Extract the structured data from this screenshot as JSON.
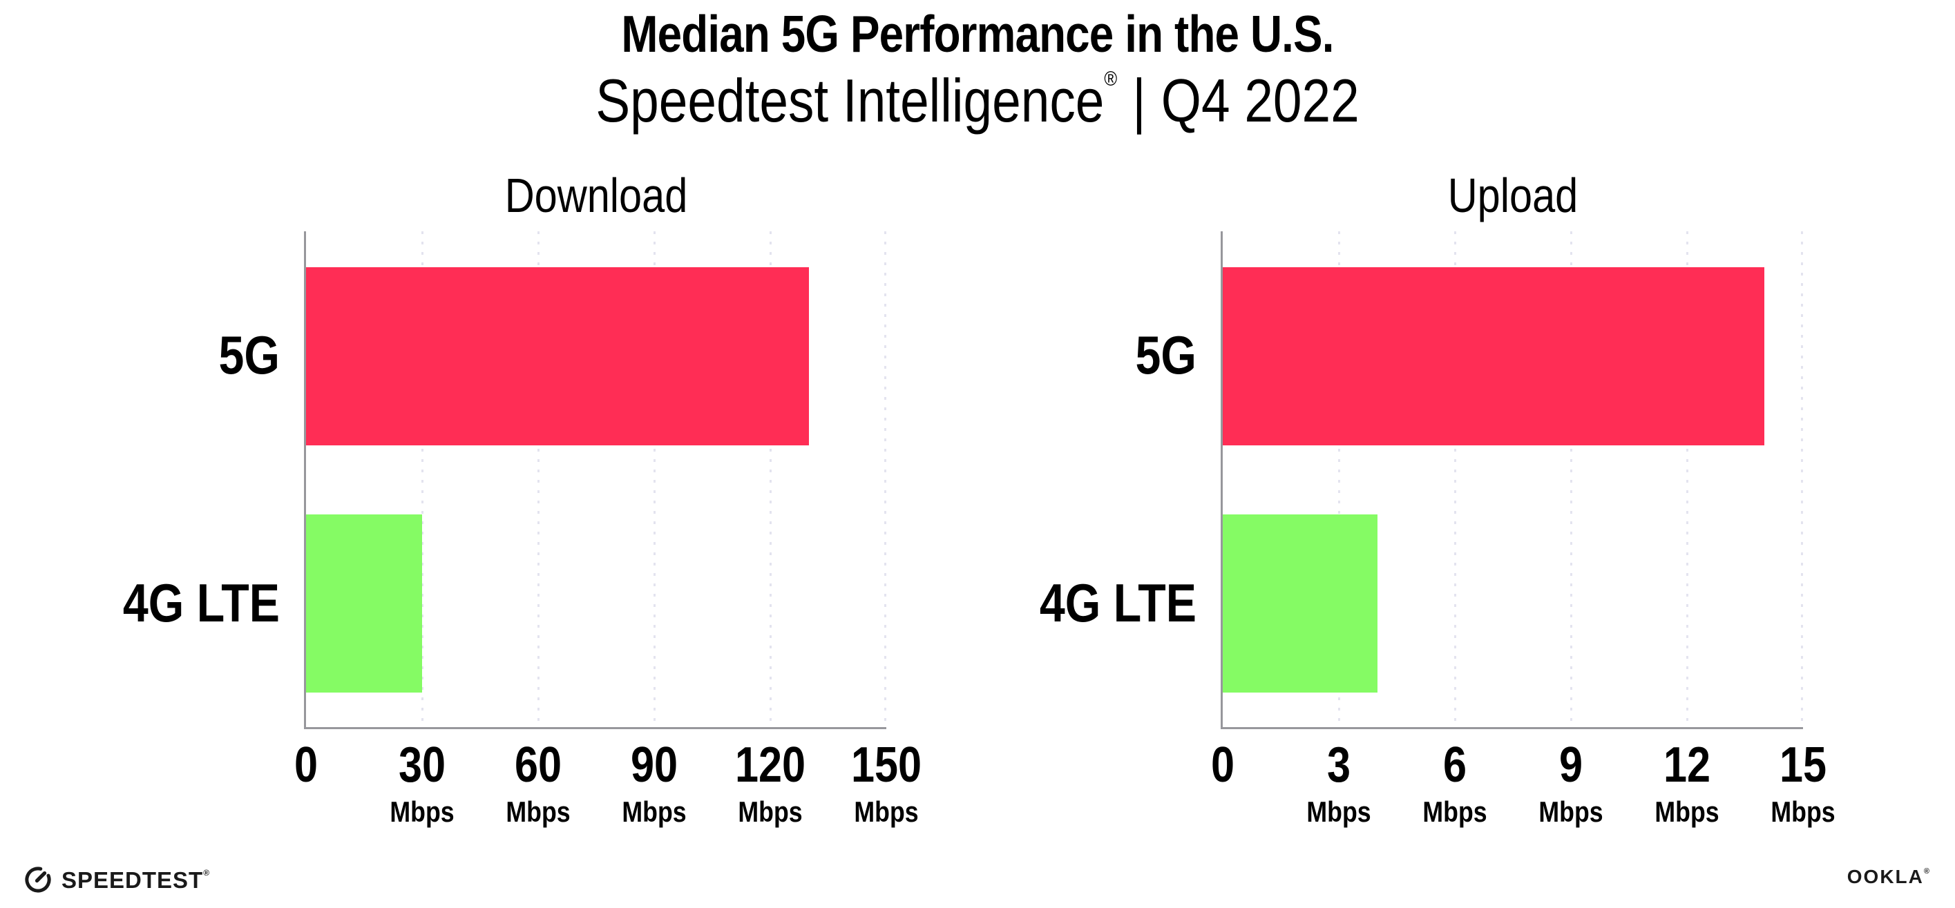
{
  "title": "Median 5G Performance in the U.S.",
  "subtitle": {
    "brand": "Speedtest Intelligence",
    "registered_mark": "®",
    "separator": "|",
    "period": "Q4 2022"
  },
  "footer": {
    "speedtest_wordmark": "SPEEDTEST",
    "speedtest_mark": "®",
    "ookla_wordmark": "OOKLA",
    "ookla_mark": "®"
  },
  "colors": {
    "bar_5g": "#FF2D55",
    "bar_4g_lte": "#85FB64",
    "axis": "#97979C",
    "gridline": "#E3E3EF",
    "text": "#000000"
  },
  "chart_data": [
    {
      "type": "bar",
      "orientation": "horizontal",
      "title": "Download",
      "categories": [
        "5G",
        "4G LTE"
      ],
      "values": [
        130,
        30
      ],
      "unit": "Mbps",
      "xlim": [
        0,
        150
      ],
      "xticks": [
        0,
        30,
        60,
        90,
        120,
        150
      ],
      "grid": "vertical-dotted",
      "legend": "none"
    },
    {
      "type": "bar",
      "orientation": "horizontal",
      "title": "Upload",
      "categories": [
        "5G",
        "4G LTE"
      ],
      "values": [
        14,
        4
      ],
      "unit": "Mbps",
      "xlim": [
        0,
        15
      ],
      "xticks": [
        0,
        3,
        6,
        9,
        12,
        15
      ],
      "grid": "vertical-dotted",
      "legend": "none"
    }
  ]
}
